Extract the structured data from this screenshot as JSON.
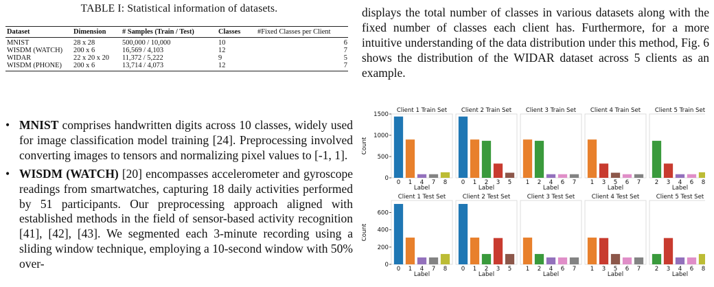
{
  "table": {
    "caption": "TABLE I: Statistical information of datasets.",
    "headers": [
      "Dataset",
      "Dimension",
      "# Samples (Train / Test)",
      "Classes",
      "#Fixed Classes per Client"
    ],
    "rows": [
      [
        "MNIST",
        "28 x 28",
        "500,000 / 10,000",
        "10",
        "6"
      ],
      [
        "WISDM (WATCH)",
        "200 x 6",
        "16,569 / 4,103",
        "12",
        "7"
      ],
      [
        "WIDAR",
        "22 x 20 x 20",
        "11,372 / 5,222",
        "9",
        "5"
      ],
      [
        "WISDM (PHONE)",
        "200 x 6",
        "13,714 / 4,073",
        "12",
        "7"
      ]
    ]
  },
  "bullets": [
    {
      "term": "MNIST",
      "text": " comprises handwritten digits across 10 classes, widely used for image classification model training [24]. Preprocessing involved converting images to tensors and normalizing pixel values to [-1, 1]."
    },
    {
      "term": "WISDM (WATCH)",
      "text": " [20] encompasses accelerometer and gyroscope readings from smartwatches, capturing 18 daily activities performed by 51 participants. Our preprocessing approach aligned with established methods in the field of sensor-based activity recognition [41], [42], [43]. We segmented each 3-minute recording using a sliding window technique, employing a 10-second window with 50% over-"
    }
  ],
  "right_paragraph": "displays the total number of classes in various datasets along with the fixed number of classes each client has. Furthermore, for a more intuitive understanding of the data distribution under this method, Fig. 6 shows the distribution of the WIDAR dataset across 5 clients as an example.",
  "chart_data": {
    "type": "bar",
    "colors": {
      "0": "#1f77b4",
      "1": "#e8802c",
      "2": "#3a9a3c",
      "3": "#c83b2f",
      "4": "#9371bc",
      "5": "#8c574a",
      "6": "#e08ec8",
      "7": "#838383",
      "8": "#bcbc35"
    },
    "panels": [
      {
        "title": "Client 1 Train Set",
        "row": 0,
        "ylabel": "Count",
        "xlabel": "Label",
        "ylim": [
          0,
          1500
        ],
        "yticks": [
          0,
          500,
          1000,
          1500
        ],
        "categories": [
          "0",
          "1",
          "4",
          "7",
          "8"
        ],
        "values": [
          1440,
          900,
          85,
          85,
          130
        ]
      },
      {
        "title": "Client 2 Train Set",
        "row": 0,
        "xlabel": "Label",
        "ylim": [
          0,
          1500
        ],
        "categories": [
          "0",
          "1",
          "2",
          "3",
          "5"
        ],
        "values": [
          1440,
          900,
          870,
          335,
          120
        ]
      },
      {
        "title": "Client 3 Train Set",
        "row": 0,
        "xlabel": "Label",
        "ylim": [
          0,
          1500
        ],
        "categories": [
          "1",
          "2",
          "4",
          "6",
          "7"
        ],
        "values": [
          900,
          870,
          85,
          85,
          85
        ]
      },
      {
        "title": "Client 4 Train Set",
        "row": 0,
        "xlabel": "Label",
        "ylim": [
          0,
          1500
        ],
        "categories": [
          "1",
          "3",
          "5",
          "6",
          "7"
        ],
        "values": [
          900,
          335,
          120,
          85,
          85
        ]
      },
      {
        "title": "Client 5 Train Set",
        "row": 0,
        "xlabel": "Label",
        "ylim": [
          0,
          1500
        ],
        "categories": [
          "2",
          "3",
          "4",
          "6",
          "8"
        ],
        "values": [
          870,
          335,
          85,
          85,
          130
        ]
      },
      {
        "title": "Client 1 Test Set",
        "row": 1,
        "ylabel": "Count",
        "xlabel": "Label",
        "ylim": [
          0,
          740
        ],
        "yticks": [
          0,
          200,
          400,
          600
        ],
        "categories": [
          "0",
          "1",
          "4",
          "7",
          "8"
        ],
        "values": [
          700,
          310,
          80,
          80,
          120
        ]
      },
      {
        "title": "Client 2 Test Set",
        "row": 1,
        "xlabel": "Label",
        "ylim": [
          0,
          740
        ],
        "categories": [
          "0",
          "1",
          "2",
          "3",
          "5"
        ],
        "values": [
          700,
          310,
          120,
          305,
          120
        ]
      },
      {
        "title": "Client 3 Test Set",
        "row": 1,
        "xlabel": "Label",
        "ylim": [
          0,
          740
        ],
        "categories": [
          "1",
          "2",
          "4",
          "6",
          "7"
        ],
        "values": [
          310,
          120,
          80,
          80,
          80
        ]
      },
      {
        "title": "Client 4 Test Set",
        "row": 1,
        "xlabel": "Label",
        "ylim": [
          0,
          740
        ],
        "categories": [
          "1",
          "3",
          "5",
          "6",
          "7"
        ],
        "values": [
          310,
          305,
          120,
          80,
          80
        ]
      },
      {
        "title": "Client 5 Test Set",
        "row": 1,
        "xlabel": "Label",
        "ylim": [
          0,
          740
        ],
        "categories": [
          "2",
          "3",
          "4",
          "6",
          "8"
        ],
        "values": [
          120,
          305,
          80,
          80,
          120
        ]
      }
    ]
  }
}
